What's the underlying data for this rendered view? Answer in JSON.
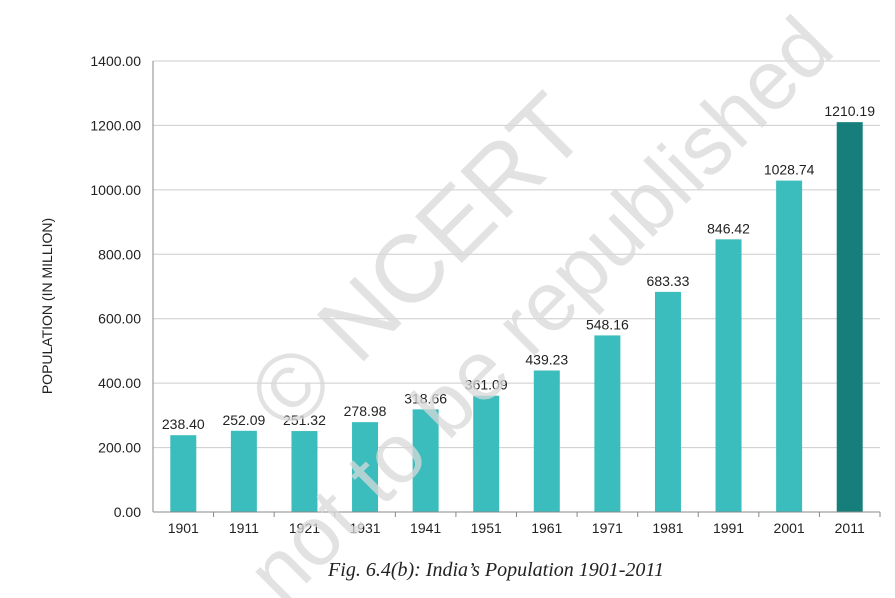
{
  "chart_data": {
    "type": "bar",
    "categories": [
      "1901",
      "1911",
      "1921",
      "1931",
      "1941",
      "1951",
      "1961",
      "1971",
      "1981",
      "1991",
      "2001",
      "2011"
    ],
    "values": [
      238.4,
      252.09,
      251.32,
      278.98,
      318.66,
      361.09,
      439.23,
      548.16,
      683.33,
      846.42,
      1028.74,
      1210.19
    ],
    "value_labels": [
      "238.40",
      "252.09",
      "251.32",
      "278.98",
      "318.66",
      "361.09",
      "439.23",
      "548.16",
      "683.33",
      "846.42",
      "1028.74",
      "1210.19"
    ],
    "ylabel": "POPULATION (IN MILLION)",
    "ylim": [
      0,
      1400
    ],
    "yticks": [
      0,
      200,
      400,
      600,
      800,
      1000,
      1200,
      1400
    ],
    "ytick_labels": [
      "0.00",
      "200.00",
      "400.00",
      "600.00",
      "800.00",
      "1000.00",
      "1200.00",
      "1400.00"
    ],
    "grid": true,
    "legend": "none",
    "colors": {
      "bar": "#3bbdbd",
      "highlight_bar": "#167f7c",
      "grid": "#cccccc",
      "axis": "#888888"
    },
    "highlight_index": 11
  },
  "caption": "Fig. 6.4(b): India’s Population 1901-2011",
  "watermark": {
    "line1": "© NCERT",
    "line2": "not to be republished"
  }
}
